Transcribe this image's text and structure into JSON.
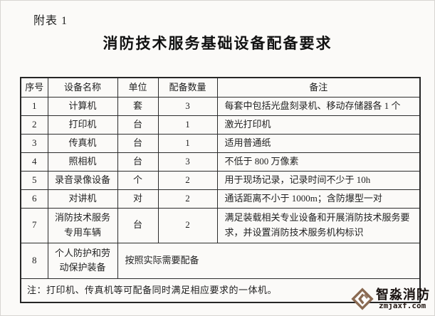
{
  "page": {
    "appendix_label": "附表 1",
    "title": "消防技术服务基础设备配备要求"
  },
  "table": {
    "headers": [
      "序号",
      "设备名称",
      "单位",
      "配备数量",
      "备注"
    ],
    "rows": [
      {
        "no": "1",
        "name": "计算机",
        "unit": "套",
        "qty": "3",
        "remark": "每套中包括光盘刻录机、移动存储器各 1 个"
      },
      {
        "no": "2",
        "name": "打印机",
        "unit": "台",
        "qty": "1",
        "remark": "激光打印机"
      },
      {
        "no": "3",
        "name": "传真机",
        "unit": "台",
        "qty": "1",
        "remark": "适用普通纸"
      },
      {
        "no": "4",
        "name": "照相机",
        "unit": "台",
        "qty": "3",
        "remark": "不低于 800 万像素"
      },
      {
        "no": "5",
        "name": "录音录像设备",
        "unit": "个",
        "qty": "2",
        "remark": "用于现场记录，记录时间不少于 10h"
      },
      {
        "no": "6",
        "name": "对讲机",
        "unit": "对",
        "qty": "2",
        "remark": "通话距离不小于 1000m；含防爆型一对"
      },
      {
        "no": "7",
        "name": "消防技术服务专用车辆",
        "unit": "台",
        "qty": "2",
        "remark": "满足装载相关专业设备和开展消防技术服务要求，并设置消防技术服务机构标识"
      },
      {
        "no": "8",
        "name": "个人防护和劳动保护装备",
        "merged_remark": "按照实际需要配备"
      }
    ],
    "footnote": "注：打印机、传真机等可配备同时满足相应要求的一体机。"
  },
  "watermark": {
    "brand": "智淼消防",
    "domain": "zmjaxf.com",
    "icon_color": "#8a6a52"
  }
}
